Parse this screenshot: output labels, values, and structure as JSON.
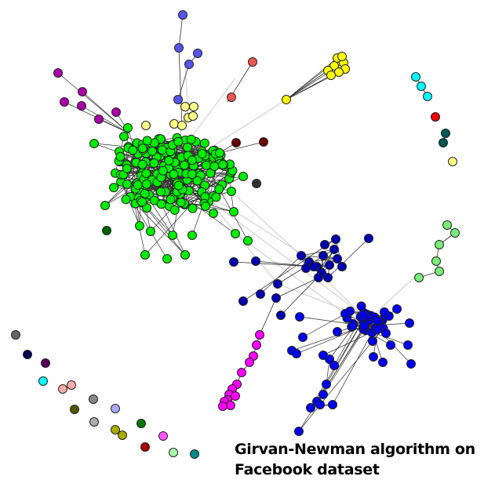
{
  "caption": {
    "line1": "Girvan-Newman algorithm on",
    "line2": "Facebook dataset"
  },
  "colors": {
    "green": "#00ee00",
    "blue": "#0000ee",
    "navy": "#0000b0",
    "yellow": "#ffff00",
    "light_yellow": "#ffff88",
    "magenta": "#ff00ff",
    "purple": "#aa00aa",
    "periwinkle": "#5555ee",
    "salmon": "#ee5555",
    "cyan": "#00ffff",
    "light_green": "#77ee77",
    "edge_dark": "#303030",
    "edge_light": "#cfcfcf"
  },
  "communities": [
    {
      "name": "green-community",
      "color": "#00ee00"
    },
    {
      "name": "dark-blue-community",
      "color": "#0000b0"
    },
    {
      "name": "blue-community",
      "color": "#0000ee"
    },
    {
      "name": "yellow-community",
      "color": "#ffff00"
    },
    {
      "name": "magenta-community",
      "color": "#ff00ff"
    },
    {
      "name": "purple-community",
      "color": "#aa00aa"
    },
    {
      "name": "periwinkle-community",
      "color": "#5555ee"
    },
    {
      "name": "cyan-community",
      "color": "#00ffff"
    },
    {
      "name": "light-green-community",
      "color": "#77ee77"
    }
  ]
}
